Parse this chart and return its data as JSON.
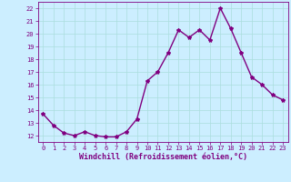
{
  "x": [
    0,
    1,
    2,
    3,
    4,
    5,
    6,
    7,
    8,
    9,
    10,
    11,
    12,
    13,
    14,
    15,
    16,
    17,
    18,
    19,
    20,
    21,
    22,
    23
  ],
  "y": [
    13.7,
    12.8,
    12.2,
    12.0,
    12.3,
    12.0,
    11.9,
    11.9,
    12.3,
    13.3,
    16.3,
    17.0,
    18.5,
    20.3,
    19.7,
    20.3,
    19.5,
    22.0,
    20.4,
    18.5,
    16.6,
    16.0,
    15.2,
    14.8
  ],
  "line_color": "#800080",
  "marker": "*",
  "marker_size": 3,
  "background_color": "#cceeff",
  "grid_color": "#aadddd",
  "xlabel": "Windchill (Refroidissement éolien,°C)",
  "ylim": [
    11.5,
    22.5
  ],
  "xlim": [
    -0.5,
    23.5
  ],
  "yticks": [
    12,
    13,
    14,
    15,
    16,
    17,
    18,
    19,
    20,
    21,
    22
  ],
  "xticks": [
    0,
    1,
    2,
    3,
    4,
    5,
    6,
    7,
    8,
    9,
    10,
    11,
    12,
    13,
    14,
    15,
    16,
    17,
    18,
    19,
    20,
    21,
    22,
    23
  ],
  "tick_fontsize": 5,
  "label_fontsize": 6,
  "line_width": 1.0
}
